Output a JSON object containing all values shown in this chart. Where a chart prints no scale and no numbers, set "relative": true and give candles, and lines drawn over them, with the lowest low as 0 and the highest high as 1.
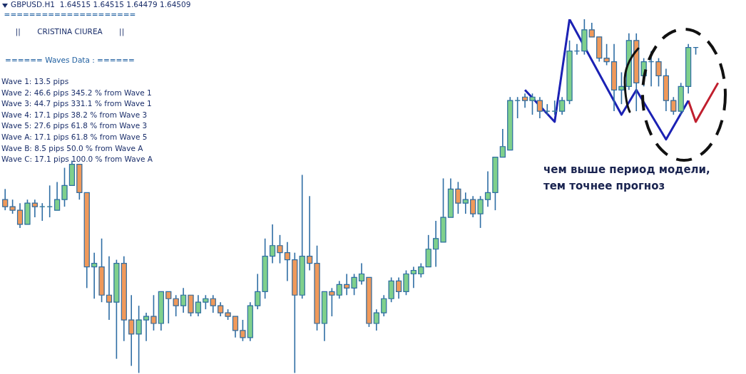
{
  "chart_data": {
    "type": "candlestick",
    "title": "GBPUSD.H1  1.64515 1.64515 1.64479 1.64509",
    "relative": true,
    "annotations": [
      "=====================",
      "||       CRISTINA CIUREA       ||",
      "====== Waves Data : ======",
      "Wave 1: 13.5 pips",
      "Wave 2: 46.6 pips 345.2 % from Wave 1",
      "Wave 3: 44.7 pips 331.1 % from Wave 1",
      "Wave 4: 17.1 pips 38.2 % from Wave 3",
      "Wave 5: 27.6 pips 61.8 % from Wave 3",
      "Wave A: 17.1 pips 61.8 % from Wave 5",
      "Wave B: 8.5 pips 50.0 % from Wave A",
      "Wave C: 17.1 pips 100.0 % from Wave A",
      "чем выше период модели,",
      "тем точнее прогноз"
    ],
    "categories": [
      null,
      null,
      null,
      null,
      null,
      null,
      null,
      null,
      null,
      null,
      null,
      null,
      null,
      null,
      null,
      null,
      null,
      null,
      null,
      null,
      null,
      null,
      null,
      null,
      null,
      null,
      null,
      null,
      null,
      null,
      null,
      null,
      null,
      null,
      null,
      null,
      null,
      null,
      null,
      null,
      null,
      null,
      null,
      null,
      null,
      null,
      null,
      null,
      null,
      null,
      null,
      null,
      null,
      null,
      null,
      null,
      null,
      null,
      null,
      null,
      null,
      null,
      null,
      null,
      null,
      null,
      null,
      null,
      null,
      null,
      null,
      null,
      null,
      null,
      null,
      null,
      null,
      null,
      null,
      null,
      null,
      null,
      null,
      null,
      null,
      null,
      null,
      null,
      null,
      null,
      null,
      null,
      null,
      null,
      null,
      null,
      null
    ],
    "ohlc": [
      [
        0.49,
        0.52,
        0.46,
        0.47
      ],
      [
        0.47,
        0.49,
        0.45,
        0.46
      ],
      [
        0.46,
        0.48,
        0.41,
        0.42
      ],
      [
        0.42,
        0.49,
        0.42,
        0.48
      ],
      [
        0.48,
        0.49,
        0.44,
        0.47
      ],
      [
        0.47,
        0.48,
        0.43,
        0.47
      ],
      [
        0.47,
        0.53,
        0.44,
        0.47
      ],
      [
        0.46,
        0.54,
        0.46,
        0.49
      ],
      [
        0.49,
        0.58,
        0.47,
        0.53
      ],
      [
        0.53,
        0.6,
        0.53,
        0.59
      ],
      [
        0.59,
        0.59,
        0.49,
        0.51
      ],
      [
        0.51,
        0.51,
        0.24,
        0.3
      ],
      [
        0.3,
        0.34,
        0.21,
        0.31
      ],
      [
        0.3,
        0.38,
        0.2,
        0.22
      ],
      [
        0.22,
        0.33,
        0.15,
        0.2
      ],
      [
        0.2,
        0.32,
        0.04,
        0.31
      ],
      [
        0.31,
        0.33,
        0.09,
        0.15
      ],
      [
        0.15,
        0.22,
        0.02,
        0.11
      ],
      [
        0.11,
        0.19,
        0,
        0.15
      ],
      [
        0.15,
        0.17,
        0.09,
        0.16
      ],
      [
        0.16,
        0.22,
        0.12,
        0.14
      ],
      [
        0.14,
        0.23,
        0.12,
        0.23
      ],
      [
        0.23,
        0.23,
        0.14,
        0.21
      ],
      [
        0.21,
        0.22,
        0.16,
        0.19
      ],
      [
        0.19,
        0.24,
        0.17,
        0.22
      ],
      [
        0.22,
        0.22,
        0.16,
        0.17
      ],
      [
        0.17,
        0.22,
        0.16,
        0.2
      ],
      [
        0.2,
        0.22,
        0.18,
        0.21
      ],
      [
        0.21,
        0.22,
        0.17,
        0.19
      ],
      [
        0.19,
        0.2,
        0.16,
        0.17
      ],
      [
        0.17,
        0.18,
        0.15,
        0.16
      ],
      [
        0.16,
        0.16,
        0.1,
        0.12
      ],
      [
        0.12,
        0.15,
        0.09,
        0.1
      ],
      [
        0.1,
        0.2,
        0.09,
        0.19
      ],
      [
        0.19,
        0.28,
        0.18,
        0.23
      ],
      [
        0.23,
        0.38,
        0.21,
        0.33
      ],
      [
        0.33,
        0.42,
        0.31,
        0.36
      ],
      [
        0.36,
        0.39,
        0.31,
        0.34
      ],
      [
        0.34,
        0.37,
        0.26,
        0.32
      ],
      [
        0.32,
        0.34,
        0,
        0.22
      ],
      [
        0.22,
        0.56,
        0.21,
        0.33
      ],
      [
        0.33,
        0.5,
        0.29,
        0.31
      ],
      [
        0.31,
        0.36,
        0.12,
        0.14
      ],
      [
        0.14,
        0.23,
        0.09,
        0.23
      ],
      [
        0.23,
        0.24,
        0.16,
        0.22
      ],
      [
        0.22,
        0.26,
        0.21,
        0.25
      ],
      [
        0.25,
        0.28,
        0.22,
        0.24
      ],
      [
        0.24,
        0.28,
        0.22,
        0.27
      ],
      [
        0.26,
        0.31,
        0.25,
        0.28
      ],
      [
        0.27,
        0.27,
        0.13,
        0.14
      ],
      [
        0.14,
        0.18,
        0.12,
        0.17
      ],
      [
        0.17,
        0.22,
        0.16,
        0.21
      ],
      [
        0.21,
        0.27,
        0.2,
        0.26
      ],
      [
        0.26,
        0.27,
        0.21,
        0.23
      ],
      [
        0.23,
        0.29,
        0.22,
        0.28
      ],
      [
        0.28,
        0.3,
        0.24,
        0.29
      ],
      [
        0.28,
        0.31,
        0.27,
        0.3
      ],
      [
        0.3,
        0.39,
        0.3,
        0.35
      ],
      [
        0.35,
        0.43,
        0.3,
        0.38
      ],
      [
        0.37,
        0.55,
        0.37,
        0.44
      ],
      [
        0.44,
        0.55,
        0.44,
        0.52
      ],
      [
        0.52,
        0.54,
        0.45,
        0.48
      ],
      [
        0.48,
        0.51,
        0.45,
        0.49
      ],
      [
        0.49,
        0.5,
        0.44,
        0.45
      ],
      [
        0.45,
        0.5,
        0.41,
        0.49
      ],
      [
        0.49,
        0.57,
        0.47,
        0.51
      ],
      [
        0.51,
        0.61,
        0.46,
        0.61
      ],
      [
        0.61,
        0.69,
        0.61,
        0.64
      ],
      [
        0.63,
        0.78,
        0.63,
        0.77
      ],
      [
        0.77,
        0.78,
        0.72,
        0.77
      ],
      [
        0.78,
        0.79,
        0.75,
        0.77
      ],
      [
        0.77,
        0.79,
        0.73,
        0.78
      ],
      [
        0.77,
        0.78,
        0.72,
        0.74
      ],
      [
        0.74,
        0.76,
        0.73,
        0.74
      ],
      [
        0.74,
        0.77,
        0.73,
        0.74
      ],
      [
        0.74,
        0.78,
        0.73,
        0.77
      ],
      [
        0.77,
        0.94,
        0.76,
        0.91
      ],
      [
        0.91,
        0.93,
        0.9,
        0.91
      ],
      [
        0.91,
        1,
        0.9,
        0.97
      ],
      [
        0.97,
        0.99,
        0.95,
        0.95
      ],
      [
        0.95,
        0.95,
        0.88,
        0.89
      ],
      [
        0.89,
        0.93,
        0.87,
        0.88
      ],
      [
        0.88,
        0.93,
        0.74,
        0.8
      ],
      [
        0.8,
        0.85,
        0.76,
        0.81
      ],
      [
        0.81,
        0.96,
        0.8,
        0.94
      ],
      [
        0.94,
        0.96,
        0.74,
        0.82
      ],
      [
        0.84,
        0.89,
        0.81,
        0.88
      ],
      [
        0.88,
        0.91,
        0.81,
        0.88
      ],
      [
        0.88,
        0.89,
        0.81,
        0.84
      ],
      [
        0.84,
        0.86,
        0.74,
        0.77
      ],
      [
        0.77,
        0.78,
        0.73,
        0.74
      ],
      [
        0.74,
        0.82,
        0.73,
        0.81
      ],
      [
        0.81,
        0.93,
        0.79,
        0.92
      ],
      [
        0.92,
        0.92,
        0.9,
        0.92
      ],
      null,
      null,
      null
    ],
    "colors": [
      "#f0995a",
      "#f0995a",
      "#f0995a",
      "#7fd08c",
      "#f0995a",
      "#7fd08c",
      "#7fd08c",
      "#7fd08c",
      "#7fd08c",
      "#7fd08c",
      "#f0995a",
      "#f0995a",
      "#7fd08c",
      "#f0995a",
      "#f0995a",
      "#7fd08c",
      "#f0995a",
      "#f0995a",
      "#7fd08c",
      "#7fd08c",
      "#f0995a",
      "#7fd08c",
      "#f0995a",
      "#f0995a",
      "#7fd08c",
      "#f0995a",
      "#7fd08c",
      "#7fd08c",
      "#f0995a",
      "#f0995a",
      "#f0995a",
      "#f0995a",
      "#f0995a",
      "#7fd08c",
      "#7fd08c",
      "#7fd08c",
      "#7fd08c",
      "#f0995a",
      "#f0995a",
      "#f0995a",
      "#7fd08c",
      "#f0995a",
      "#f0995a",
      "#7fd08c",
      "#f0995a",
      "#7fd08c",
      "#f0995a",
      "#7fd08c",
      "#7fd08c",
      "#f0995a",
      "#7fd08c",
      "#7fd08c",
      "#7fd08c",
      "#f0995a",
      "#7fd08c",
      "#7fd08c",
      "#7fd08c",
      "#7fd08c",
      "#7fd08c",
      "#7fd08c",
      "#7fd08c",
      "#f0995a",
      "#7fd08c",
      "#f0995a",
      "#7fd08c",
      "#7fd08c",
      "#7fd08c",
      "#7fd08c",
      "#7fd08c",
      "#7fd08c",
      "#f0995a",
      "#7fd08c",
      "#f0995a",
      "#7fd08c",
      "#7fd08c",
      "#7fd08c",
      "#7fd08c",
      "#7fd08c",
      "#7fd08c",
      "#f0995a",
      "#f0995a",
      "#f0995a",
      "#f0995a",
      "#7fd08c",
      "#7fd08c",
      "#f0995a",
      "#7fd08c",
      "#7fd08c",
      "#f0995a",
      "#f0995a",
      "#f0995a",
      "#7fd08c",
      "#7fd08c",
      "#7fd08c",
      null,
      null,
      null
    ],
    "series": [
      {
        "type": "line",
        "color": "#1c22b4",
        "values": [
          null,
          null,
          null,
          null,
          null,
          null,
          null,
          null,
          null,
          null,
          null,
          null,
          null,
          null,
          null,
          null,
          null,
          null,
          null,
          null,
          null,
          null,
          null,
          null,
          null,
          null,
          null,
          null,
          null,
          null,
          null,
          null,
          null,
          null,
          null,
          null,
          null,
          null,
          null,
          null,
          null,
          null,
          null,
          null,
          null,
          null,
          null,
          null,
          null,
          null,
          null,
          null,
          null,
          null,
          null,
          null,
          null,
          null,
          null,
          null,
          null,
          null,
          null,
          null,
          null,
          null,
          null,
          null,
          null,
          null,
          0.8,
          null,
          null,
          null,
          0.71,
          null,
          1,
          null,
          null,
          null,
          null,
          null,
          null,
          0.73,
          null,
          0.8,
          null,
          null,
          null,
          0.66,
          null,
          null,
          0.77,
          null,
          null,
          null,
          null
        ]
      },
      {
        "type": "line",
        "color": "#c01f2e",
        "values": [
          null,
          null,
          null,
          null,
          null,
          null,
          null,
          null,
          null,
          null,
          null,
          null,
          null,
          null,
          null,
          null,
          null,
          null,
          null,
          null,
          null,
          null,
          null,
          null,
          null,
          null,
          null,
          null,
          null,
          null,
          null,
          null,
          null,
          null,
          null,
          null,
          null,
          null,
          null,
          null,
          null,
          null,
          null,
          null,
          null,
          null,
          null,
          null,
          null,
          null,
          null,
          null,
          null,
          null,
          null,
          null,
          null,
          null,
          null,
          null,
          null,
          null,
          null,
          null,
          null,
          null,
          null,
          null,
          null,
          null,
          null,
          null,
          null,
          null,
          null,
          null,
          null,
          null,
          null,
          null,
          null,
          null,
          null,
          null,
          null,
          null,
          null,
          null,
          null,
          null,
          null,
          null,
          0.77,
          0.71,
          null,
          null,
          0.82
        ]
      }
    ]
  }
}
